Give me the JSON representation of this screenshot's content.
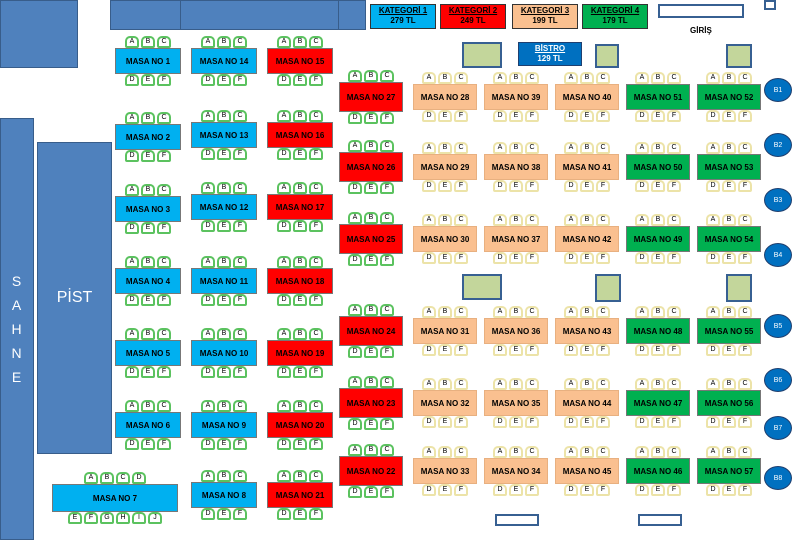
{
  "legend": [
    {
      "name": "KATEGORİ 1",
      "price": "279 TL",
      "color": "#00b0f0"
    },
    {
      "name": "KATEGORİ 2",
      "price": "249 TL",
      "color": "#ff0000"
    },
    {
      "name": "KATEGORİ 3",
      "price": "199 TL",
      "color": "#fac090"
    },
    {
      "name": "KATEGORİ 4",
      "price": "179 TL",
      "color": "#00b050"
    }
  ],
  "entrance_label": "GİRİŞ",
  "bistro": {
    "name": "BİSTRO",
    "price": "129 TL"
  },
  "stage_label": [
    "S",
    "A",
    "H",
    "N",
    "E"
  ],
  "dance_floor_label": "PİST",
  "seat_letters": {
    "top": [
      "A",
      "B",
      "C"
    ],
    "bottom": [
      "D",
      "E",
      "F"
    ]
  },
  "table7_letters": {
    "top": [
      "A",
      "B",
      "C",
      "D"
    ],
    "bottom": [
      "E",
      "F",
      "G",
      "H",
      "I",
      "J"
    ]
  },
  "tables": {
    "left": [
      "MASA NO 1",
      "MASA NO 2",
      "MASA NO 3",
      "MASA NO 4",
      "MASA NO 5",
      "MASA NO 6"
    ],
    "mid1": [
      "MASA NO 14",
      "MASA NO 13",
      "MASA NO 12",
      "MASA NO 11",
      "MASA NO 10",
      "MASA NO 9",
      "MASA NO 8"
    ],
    "mid2": [
      "MASA NO 15",
      "MASA NO 16",
      "MASA NO 17",
      "MASA NO 18",
      "MASA NO 19",
      "MASA NO 20",
      "MASA NO 21"
    ],
    "col3": [
      "MASA NO 27",
      "MASA NO 26",
      "MASA NO 25",
      "MASA NO 24",
      "MASA NO 23",
      "MASA NO 22"
    ],
    "col4": [
      "MASA NO 28",
      "MASA NO 29",
      "MASA NO 30",
      "MASA NO 31",
      "MASA NO 32",
      "MASA NO 33"
    ],
    "col5": [
      "MASA NO 39",
      "MASA NO 38",
      "MASA NO 37",
      "MASA NO 36",
      "MASA NO 35",
      "MASA NO 34"
    ],
    "col6": [
      "MASA NO 40",
      "MASA NO 41",
      "MASA NO 42",
      "MASA NO 43",
      "MASA NO 44",
      "MASA NO 45"
    ],
    "col7": [
      "MASA NO 51",
      "MASA NO 50",
      "MASA NO 49",
      "MASA NO 48",
      "MASA NO 47",
      "MASA NO 46"
    ],
    "col8": [
      "MASA NO 52",
      "MASA NO 53",
      "MASA NO 54",
      "MASA NO 55",
      "MASA NO 56",
      "MASA NO 57"
    ],
    "table7": "MASA NO 7"
  },
  "booths": [
    "B1",
    "B2",
    "B3",
    "B4",
    "B5",
    "B6",
    "B7",
    "B8"
  ]
}
